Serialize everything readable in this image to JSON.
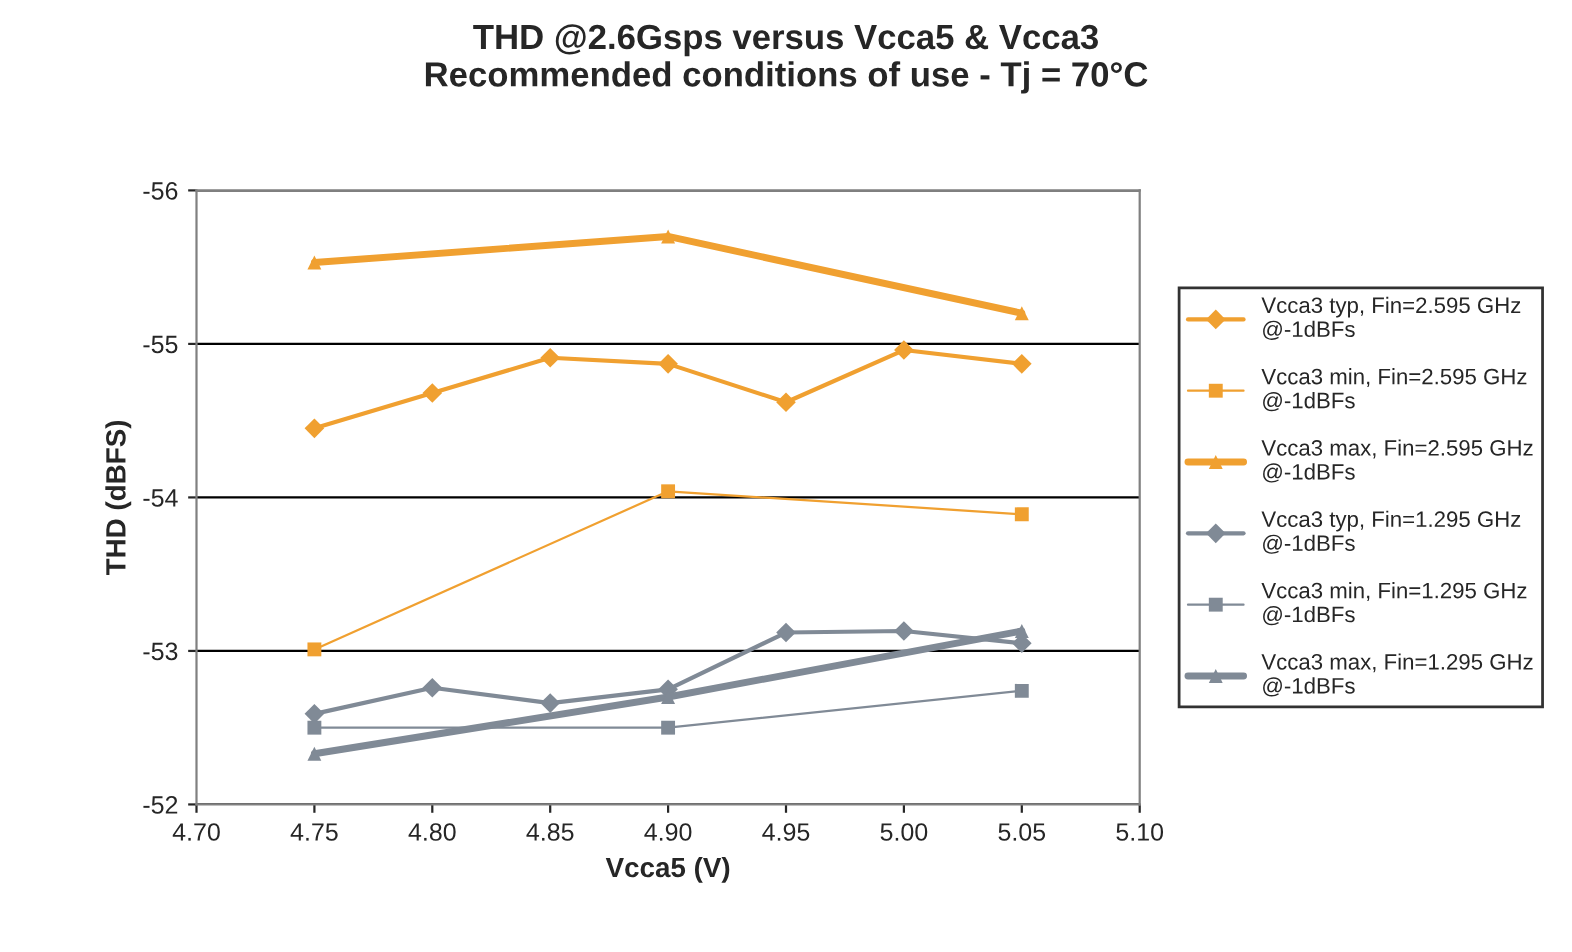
{
  "chart_data": {
    "type": "line",
    "title": "THD @2.6Gsps versus Vcca5 & Vcca3\nRecommended conditions of use - Tj = 70°C",
    "xlabel": "Vcca5 (V)",
    "ylabel": "THD (dBFS)",
    "xlim": [
      4.7,
      5.1
    ],
    "xticks": [
      {
        "value": 4.7,
        "label": "4.70"
      },
      {
        "value": 4.75,
        "label": "4.75"
      },
      {
        "value": 4.8,
        "label": "4.80"
      },
      {
        "value": 4.85,
        "label": "4.85"
      },
      {
        "value": 4.9,
        "label": "4.90"
      },
      {
        "value": 4.95,
        "label": "4.95"
      },
      {
        "value": 5.0,
        "label": "5.00"
      },
      {
        "value": 5.05,
        "label": "5.05"
      },
      {
        "value": 5.1,
        "label": "5.10"
      }
    ],
    "ylim": [
      -52,
      -56
    ],
    "yticks": [
      -56,
      -55,
      -54,
      -53,
      -52
    ],
    "grid": "y",
    "legend": "right",
    "series": [
      {
        "name": "Vcca3 typ, Fin=2.595 GHz @-1dBFs",
        "color": "#f0a030",
        "marker": "diamond",
        "x": [
          4.75,
          4.8,
          4.85,
          4.9,
          4.95,
          5.0,
          5.05
        ],
        "values": [
          -54.45,
          -54.68,
          -54.91,
          -54.87,
          -54.62,
          -54.96,
          -54.87
        ]
      },
      {
        "name": "Vcca3 min, Fin=2.595 GHz @-1dBFs",
        "color": "#f0a030",
        "marker": "square",
        "x": [
          4.75,
          4.9,
          5.05
        ],
        "values": [
          -53.01,
          -54.04,
          -53.89
        ]
      },
      {
        "name": "Vcca3 max, Fin=2.595 GHz @-1dBFs",
        "color": "#f0a030",
        "marker": "triangle",
        "x": [
          4.75,
          4.9,
          5.05
        ],
        "values": [
          -55.53,
          -55.7,
          -55.2
        ]
      },
      {
        "name": "Vcca3 typ, Fin=1.295 GHz @-1dBFs",
        "color": "#808a96",
        "marker": "diamond",
        "x": [
          4.75,
          4.8,
          4.85,
          4.9,
          4.95,
          5.0,
          5.05
        ],
        "values": [
          -52.59,
          -52.76,
          -52.66,
          -52.75,
          -53.12,
          -53.13,
          -53.05
        ]
      },
      {
        "name": "Vcca3 min, Fin=1.295 GHz @-1dBFs",
        "color": "#808a96",
        "marker": "square",
        "x": [
          4.75,
          4.9,
          5.05
        ],
        "values": [
          -52.5,
          -52.5,
          -52.74
        ]
      },
      {
        "name": "Vcca3 max, Fin=1.295 GHz @-1dBFs",
        "color": "#808a96",
        "marker": "triangle",
        "x": [
          4.75,
          4.9,
          5.05
        ],
        "values": [
          -52.33,
          -52.7,
          -53.13
        ]
      }
    ]
  }
}
